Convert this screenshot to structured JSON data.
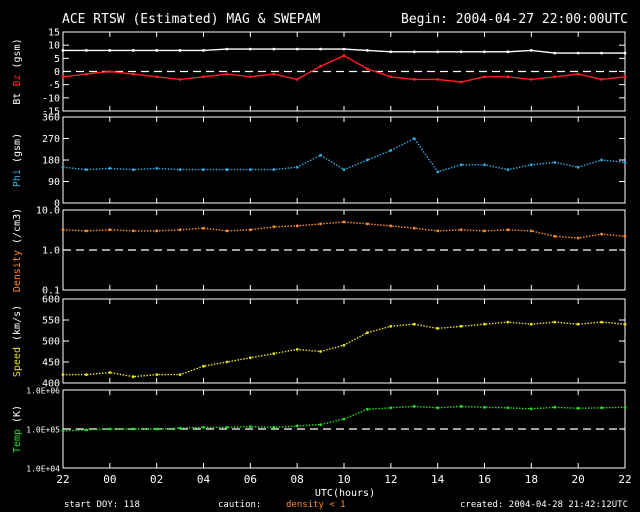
{
  "header": {
    "title": "ACE RTSW (Estimated) MAG & SWEPAM",
    "begin": "Begin: 2004-04-27 22:00:00UTC"
  },
  "footer": {
    "start_doy": "start DOY: 118",
    "caution_label": "caution:",
    "caution_value": "density < 1",
    "created": "created: 2004-04-28 21:42:12UTC",
    "xlabel": "UTC(hours)"
  },
  "colors": {
    "frame": "#ffffff",
    "bt": "#ffffff",
    "bz": "#ff2020",
    "phi": "#33aadd",
    "density": "#ff8c2a",
    "speed": "#e6e020",
    "temp": "#22dd22",
    "caution": "#ff8c2a"
  },
  "chart_data": {
    "type": "scatter",
    "x_ticks": [
      "22",
      "00",
      "02",
      "04",
      "06",
      "08",
      "10",
      "12",
      "14",
      "16",
      "18",
      "20",
      "22"
    ],
    "x_range_hours": [
      0,
      24
    ],
    "panels": [
      {
        "id": "mag",
        "type": "line",
        "ylabel_parts": [
          {
            "text": "Bt",
            "color": "#ffffff"
          },
          {
            "text": " ",
            "color": "#ffffff"
          },
          {
            "text": "Bz",
            "color": "#ff2020"
          },
          {
            "text": " (gsm)",
            "color": "#ffffff"
          }
        ],
        "scale": "linear",
        "ylim": [
          -15,
          15
        ],
        "y_ticks": [
          {
            "value": 15,
            "label": "15"
          },
          {
            "value": 10,
            "label": "10"
          },
          {
            "value": 5,
            "label": "5"
          },
          {
            "value": 0,
            "label": "0"
          },
          {
            "value": -5,
            "label": "-5"
          },
          {
            "value": -10,
            "label": "-10"
          },
          {
            "value": -15,
            "label": "-15"
          }
        ],
        "ref_line": 0,
        "series": [
          {
            "name": "Bt",
            "color": "#ffffff",
            "x": [
              0,
              1,
              2,
              3,
              4,
              5,
              6,
              7,
              8,
              9,
              10,
              11,
              12,
              13,
              14,
              15,
              16,
              17,
              18,
              19,
              20,
              21,
              22,
              23,
              24
            ],
            "y": [
              8,
              8,
              8,
              8,
              8,
              8,
              8,
              8.5,
              8.5,
              8.5,
              8.5,
              8.5,
              8.5,
              8,
              7.5,
              7.5,
              7.5,
              7.5,
              7.5,
              7.5,
              8,
              7,
              7,
              7,
              7
            ]
          },
          {
            "name": "Bz",
            "color": "#ff2020",
            "x": [
              0,
              1,
              2,
              3,
              4,
              5,
              6,
              7,
              8,
              9,
              10,
              11,
              12,
              13,
              14,
              15,
              16,
              17,
              18,
              19,
              20,
              21,
              22,
              23,
              24
            ],
            "y": [
              -2,
              -1,
              0,
              -1,
              -2,
              -3,
              -2,
              -1,
              -2,
              -1,
              -3,
              2,
              6,
              1,
              -2,
              -3,
              -3,
              -4,
              -2,
              -2,
              -3,
              -2,
              -1,
              -3,
              -2
            ]
          }
        ]
      },
      {
        "id": "phi",
        "type": "scatter",
        "ylabel_parts": [
          {
            "text": "Phi",
            "color": "#33aadd"
          },
          {
            "text": " (gsm)",
            "color": "#ffffff"
          }
        ],
        "scale": "linear",
        "ylim": [
          0,
          360
        ],
        "y_ticks": [
          {
            "value": 360,
            "label": "360"
          },
          {
            "value": 270,
            "label": "270"
          },
          {
            "value": 180,
            "label": "180"
          },
          {
            "value": 90,
            "label": "90"
          },
          {
            "value": 0,
            "label": "0"
          }
        ],
        "ref_line": null,
        "series": [
          {
            "name": "Phi",
            "color": "#33aadd",
            "x": [
              0,
              1,
              2,
              3,
              4,
              5,
              6,
              7,
              8,
              9,
              10,
              11,
              12,
              13,
              14,
              15,
              16,
              17,
              18,
              19,
              20,
              21,
              22,
              23,
              24
            ],
            "y": [
              150,
              140,
              145,
              140,
              145,
              140,
              140,
              140,
              140,
              140,
              150,
              200,
              140,
              180,
              220,
              270,
              130,
              160,
              160,
              140,
              160,
              170,
              150,
              180,
              170
            ]
          }
        ]
      },
      {
        "id": "density",
        "type": "scatter",
        "ylabel_parts": [
          {
            "text": "Density",
            "color": "#ff8c2a"
          },
          {
            "text": " (/cm3)",
            "color": "#ffffff"
          }
        ],
        "scale": "log",
        "ylim": [
          0.1,
          10
        ],
        "y_ticks": [
          {
            "value": 10,
            "label": "10.0"
          },
          {
            "value": 1,
            "label": "1.0"
          },
          {
            "value": 0.1,
            "label": "0.1"
          }
        ],
        "ref_line": 1,
        "series": [
          {
            "name": "Density",
            "color": "#ff8c2a",
            "x": [
              0,
              1,
              2,
              3,
              4,
              5,
              6,
              7,
              8,
              9,
              10,
              11,
              12,
              13,
              14,
              15,
              16,
              17,
              18,
              19,
              20,
              21,
              22,
              23,
              24
            ],
            "y": [
              3.2,
              3.0,
              3.2,
              3.0,
              3.0,
              3.2,
              3.5,
              3.0,
              3.2,
              3.8,
              4.0,
              4.5,
              5.0,
              4.5,
              4.0,
              3.5,
              3.0,
              3.2,
              3.0,
              3.2,
              3.0,
              2.2,
              2.0,
              2.5,
              2.2
            ]
          }
        ]
      },
      {
        "id": "speed",
        "type": "scatter",
        "ylabel_parts": [
          {
            "text": "Speed",
            "color": "#e6e020"
          },
          {
            "text": " (km/s)",
            "color": "#ffffff"
          }
        ],
        "scale": "linear",
        "ylim": [
          400,
          600
        ],
        "y_ticks": [
          {
            "value": 600,
            "label": "600"
          },
          {
            "value": 550,
            "label": "550"
          },
          {
            "value": 500,
            "label": "500"
          },
          {
            "value": 450,
            "label": "450"
          },
          {
            "value": 400,
            "label": "400"
          }
        ],
        "ref_line": null,
        "series": [
          {
            "name": "Speed",
            "color": "#e6e020",
            "x": [
              0,
              1,
              2,
              3,
              4,
              5,
              6,
              7,
              8,
              9,
              10,
              11,
              12,
              13,
              14,
              15,
              16,
              17,
              18,
              19,
              20,
              21,
              22,
              23,
              24
            ],
            "y": [
              420,
              420,
              425,
              415,
              420,
              420,
              440,
              450,
              460,
              470,
              480,
              475,
              490,
              520,
              535,
              540,
              530,
              535,
              540,
              545,
              540,
              545,
              540,
              545,
              540
            ]
          }
        ]
      },
      {
        "id": "temp",
        "type": "scatter",
        "ylabel_parts": [
          {
            "text": "Temp",
            "color": "#22dd22"
          },
          {
            "text": " (K)",
            "color": "#ffffff"
          }
        ],
        "scale": "log",
        "ylim": [
          10000,
          1000000
        ],
        "y_ticks": [
          {
            "value": 1000000,
            "label": "1.0E+06"
          },
          {
            "value": 100000,
            "label": "1.0E+05"
          },
          {
            "value": 10000,
            "label": "1.0E+04"
          }
        ],
        "ref_line": 100000,
        "series": [
          {
            "name": "Temp",
            "color": "#22dd22",
            "x": [
              0,
              1,
              2,
              3,
              4,
              5,
              6,
              7,
              8,
              9,
              10,
              11,
              12,
              13,
              14,
              15,
              16,
              17,
              18,
              19,
              20,
              21,
              22,
              23,
              24
            ],
            "y": [
              90000,
              95000,
              100000,
              100000,
              100000,
              105000,
              110000,
              110000,
              115000,
              110000,
              120000,
              130000,
              180000,
              320000,
              350000,
              380000,
              350000,
              380000,
              360000,
              350000,
              330000,
              360000,
              340000,
              350000,
              360000
            ]
          }
        ]
      }
    ]
  }
}
